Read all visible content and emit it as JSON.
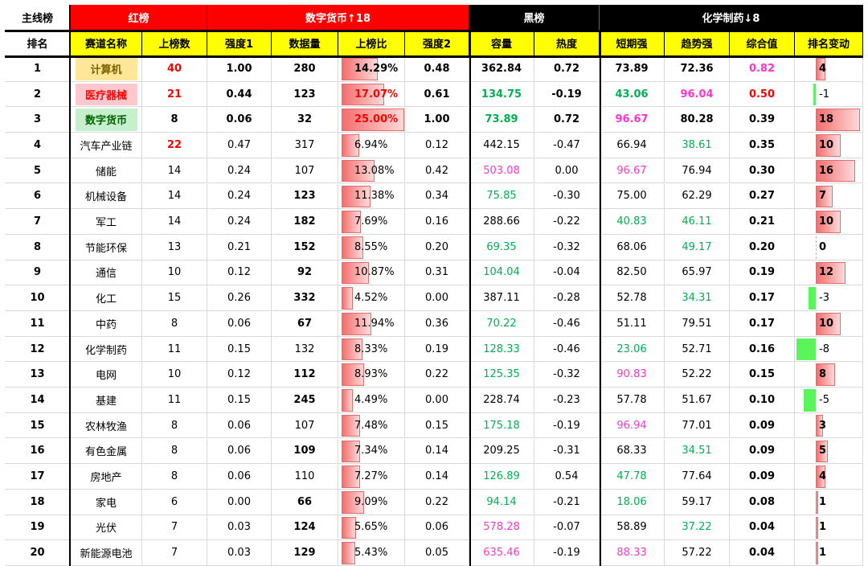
{
  "colors": {
    "red_bg": "#ff0000",
    "black_bg": "#000000",
    "yellow_bg": "#ffff00",
    "text_red": "#ff0000",
    "text_green": "#00b050",
    "text_magenta": "#ff33cc",
    "bar_red": "#f46e6e",
    "bar_green": "#5cf45c",
    "name_yellow": "#ffe699",
    "name_pink": "#ffc7ce",
    "name_green": "#c6efce"
  },
  "header": {
    "groups": [
      "主线榜",
      "红榜",
      "数字货币↑18",
      "黑榜",
      "化学制药↓8"
    ],
    "columns": [
      "排名",
      "赛道名称",
      "上榜数",
      "强度1",
      "数据量",
      "上榜比",
      "强度2",
      "容量",
      "热度",
      "短期强",
      "趋势强",
      "综合值",
      "排名变动"
    ]
  },
  "rows": [
    {
      "rank": "1",
      "name": "计算机",
      "name_bg": "yellow",
      "count": "40",
      "count_color": "red",
      "s1": "1.00",
      "s1_bold": true,
      "data": "280",
      "data_bold": true,
      "ratio": "14.29%",
      "ratio_val": 0.1429,
      "ratio_bold": true,
      "s2": "0.48",
      "s2_bold": true,
      "cap": "362.84",
      "cap_color": "black",
      "cap_bold": true,
      "heat": "0.72",
      "heat_bold": true,
      "short": "73.89",
      "short_color": "black",
      "short_bold": true,
      "trend": "72.36",
      "trend_color": "black",
      "trend_bold": true,
      "comp": "0.82",
      "comp_color": "magenta",
      "comp_bold": true,
      "change": "4",
      "change_val": 4,
      "change_bold": true
    },
    {
      "rank": "2",
      "name": "医疗器械",
      "name_bg": "pink",
      "count": "21",
      "count_color": "red",
      "s1": "0.44",
      "s1_bold": true,
      "data": "123",
      "data_bold": true,
      "ratio": "17.07%",
      "ratio_val": 0.1707,
      "ratio_bold": true,
      "ratio_color": "red",
      "s2": "0.61",
      "s2_bold": true,
      "cap": "134.75",
      "cap_color": "green",
      "cap_bold": true,
      "heat": "-0.19",
      "heat_bold": true,
      "short": "43.06",
      "short_color": "green",
      "short_bold": true,
      "trend": "96.04",
      "trend_color": "magenta",
      "trend_bold": true,
      "comp": "0.50",
      "comp_color": "red",
      "comp_bold": true,
      "change": "-1",
      "change_val": -1,
      "change_bold": false
    },
    {
      "rank": "3",
      "name": "数字货币",
      "name_bg": "green",
      "count": "8",
      "count_color": "black",
      "s1": "0.06",
      "s1_bold": true,
      "data": "32",
      "data_bold": true,
      "ratio": "25.00%",
      "ratio_val": 0.25,
      "ratio_bold": true,
      "ratio_color": "red",
      "s2": "1.00",
      "s2_bold": true,
      "cap": "73.89",
      "cap_color": "green",
      "cap_bold": true,
      "heat": "0.72",
      "heat_bold": true,
      "short": "96.67",
      "short_color": "magenta",
      "short_bold": true,
      "trend": "80.28",
      "trend_color": "black",
      "trend_bold": true,
      "comp": "0.39",
      "comp_color": "black",
      "comp_bold": true,
      "change": "18",
      "change_val": 18,
      "change_bold": true
    },
    {
      "rank": "4",
      "name": "汽车产业链",
      "name_bg": "",
      "count": "22",
      "count_color": "red",
      "s1": "0.47",
      "s1_bold": false,
      "data": "317",
      "data_bold": false,
      "ratio": "6.94%",
      "ratio_val": 0.0694,
      "ratio_bold": false,
      "s2": "0.12",
      "s2_bold": false,
      "cap": "442.15",
      "cap_color": "black",
      "cap_bold": false,
      "heat": "-0.47",
      "heat_bold": false,
      "short": "66.94",
      "short_color": "black",
      "short_bold": false,
      "trend": "38.61",
      "trend_color": "green",
      "trend_bold": false,
      "comp": "0.35",
      "comp_color": "black",
      "comp_bold": true,
      "change": "10",
      "change_val": 10,
      "change_bold": true
    },
    {
      "rank": "5",
      "name": "储能",
      "name_bg": "",
      "count": "14",
      "count_color": "black",
      "s1": "0.24",
      "s1_bold": false,
      "data": "107",
      "data_bold": false,
      "ratio": "13.08%",
      "ratio_val": 0.1308,
      "ratio_bold": false,
      "s2": "0.42",
      "s2_bold": false,
      "cap": "503.08",
      "cap_color": "magenta",
      "cap_bold": false,
      "heat": "0.00",
      "heat_bold": false,
      "short": "96.67",
      "short_color": "magenta",
      "short_bold": false,
      "trend": "76.94",
      "trend_color": "black",
      "trend_bold": false,
      "comp": "0.30",
      "comp_color": "black",
      "comp_bold": true,
      "change": "16",
      "change_val": 16,
      "change_bold": true
    },
    {
      "rank": "6",
      "name": "机械设备",
      "name_bg": "",
      "count": "14",
      "count_color": "black",
      "s1": "0.24",
      "s1_bold": false,
      "data": "123",
      "data_bold": true,
      "ratio": "11.38%",
      "ratio_val": 0.1138,
      "ratio_bold": false,
      "s2": "0.34",
      "s2_bold": false,
      "cap": "75.85",
      "cap_color": "green",
      "cap_bold": false,
      "heat": "-0.30",
      "heat_bold": false,
      "short": "75.00",
      "short_color": "black",
      "short_bold": false,
      "trend": "62.29",
      "trend_color": "black",
      "trend_bold": false,
      "comp": "0.27",
      "comp_color": "black",
      "comp_bold": true,
      "change": "7",
      "change_val": 7,
      "change_bold": true
    },
    {
      "rank": "7",
      "name": "军工",
      "name_bg": "",
      "count": "14",
      "count_color": "black",
      "s1": "0.24",
      "s1_bold": false,
      "data": "182",
      "data_bold": true,
      "ratio": "7.69%",
      "ratio_val": 0.0769,
      "ratio_bold": false,
      "s2": "0.16",
      "s2_bold": false,
      "cap": "288.66",
      "cap_color": "black",
      "cap_bold": false,
      "heat": "-0.22",
      "heat_bold": false,
      "short": "40.83",
      "short_color": "green",
      "short_bold": false,
      "trend": "46.11",
      "trend_color": "green",
      "trend_bold": false,
      "comp": "0.21",
      "comp_color": "black",
      "comp_bold": true,
      "change": "10",
      "change_val": 10,
      "change_bold": true
    },
    {
      "rank": "8",
      "name": "节能环保",
      "name_bg": "",
      "count": "13",
      "count_color": "black",
      "s1": "0.21",
      "s1_bold": false,
      "data": "152",
      "data_bold": true,
      "ratio": "8.55%",
      "ratio_val": 0.0855,
      "ratio_bold": false,
      "s2": "0.20",
      "s2_bold": false,
      "cap": "69.35",
      "cap_color": "green",
      "cap_bold": false,
      "heat": "-0.32",
      "heat_bold": false,
      "short": "68.06",
      "short_color": "black",
      "short_bold": false,
      "trend": "49.17",
      "trend_color": "green",
      "trend_bold": false,
      "comp": "0.20",
      "comp_color": "black",
      "comp_bold": true,
      "change": "0",
      "change_val": 0,
      "change_bold": true
    },
    {
      "rank": "9",
      "name": "通信",
      "name_bg": "",
      "count": "10",
      "count_color": "black",
      "s1": "0.12",
      "s1_bold": false,
      "data": "92",
      "data_bold": true,
      "ratio": "10.87%",
      "ratio_val": 0.1087,
      "ratio_bold": false,
      "s2": "0.31",
      "s2_bold": false,
      "cap": "104.04",
      "cap_color": "green",
      "cap_bold": false,
      "heat": "-0.04",
      "heat_bold": false,
      "short": "82.50",
      "short_color": "black",
      "short_bold": false,
      "trend": "65.97",
      "trend_color": "black",
      "trend_bold": false,
      "comp": "0.19",
      "comp_color": "black",
      "comp_bold": true,
      "change": "12",
      "change_val": 12,
      "change_bold": true
    },
    {
      "rank": "10",
      "name": "化工",
      "name_bg": "",
      "count": "15",
      "count_color": "black",
      "s1": "0.26",
      "s1_bold": false,
      "data": "332",
      "data_bold": true,
      "ratio": "4.52%",
      "ratio_val": 0.0452,
      "ratio_bold": false,
      "s2": "0.00",
      "s2_bold": false,
      "cap": "387.11",
      "cap_color": "black",
      "cap_bold": false,
      "heat": "-0.28",
      "heat_bold": false,
      "short": "52.78",
      "short_color": "black",
      "short_bold": false,
      "trend": "34.31",
      "trend_color": "green",
      "trend_bold": false,
      "comp": "0.17",
      "comp_color": "black",
      "comp_bold": true,
      "change": "-3",
      "change_val": -3,
      "change_bold": false
    },
    {
      "rank": "11",
      "name": "中药",
      "name_bg": "",
      "count": "8",
      "count_color": "black",
      "s1": "0.06",
      "s1_bold": false,
      "data": "67",
      "data_bold": true,
      "ratio": "11.94%",
      "ratio_val": 0.1194,
      "ratio_bold": false,
      "s2": "0.36",
      "s2_bold": false,
      "cap": "70.22",
      "cap_color": "green",
      "cap_bold": false,
      "heat": "-0.46",
      "heat_bold": false,
      "short": "51.11",
      "short_color": "black",
      "short_bold": false,
      "trend": "79.51",
      "trend_color": "black",
      "trend_bold": false,
      "comp": "0.17",
      "comp_color": "black",
      "comp_bold": true,
      "change": "10",
      "change_val": 10,
      "change_bold": true
    },
    {
      "rank": "12",
      "name": "化学制药",
      "name_bg": "",
      "count": "11",
      "count_color": "black",
      "s1": "0.15",
      "s1_bold": false,
      "data": "132",
      "data_bold": false,
      "ratio": "8.33%",
      "ratio_val": 0.0833,
      "ratio_bold": false,
      "s2": "0.19",
      "s2_bold": false,
      "cap": "128.33",
      "cap_color": "green",
      "cap_bold": false,
      "heat": "-0.46",
      "heat_bold": false,
      "short": "23.06",
      "short_color": "green",
      "short_bold": false,
      "trend": "52.71",
      "trend_color": "black",
      "trend_bold": false,
      "comp": "0.16",
      "comp_color": "black",
      "comp_bold": true,
      "change": "-8",
      "change_val": -8,
      "change_bold": false
    },
    {
      "rank": "13",
      "name": "电网",
      "name_bg": "",
      "count": "10",
      "count_color": "black",
      "s1": "0.12",
      "s1_bold": false,
      "data": "112",
      "data_bold": true,
      "ratio": "8.93%",
      "ratio_val": 0.0893,
      "ratio_bold": false,
      "s2": "0.22",
      "s2_bold": false,
      "cap": "125.35",
      "cap_color": "green",
      "cap_bold": false,
      "heat": "-0.32",
      "heat_bold": false,
      "short": "90.83",
      "short_color": "magenta",
      "short_bold": false,
      "trend": "52.22",
      "trend_color": "black",
      "trend_bold": false,
      "comp": "0.15",
      "comp_color": "black",
      "comp_bold": true,
      "change": "8",
      "change_val": 8,
      "change_bold": true
    },
    {
      "rank": "14",
      "name": "基建",
      "name_bg": "",
      "count": "11",
      "count_color": "black",
      "s1": "0.15",
      "s1_bold": false,
      "data": "245",
      "data_bold": true,
      "ratio": "4.49%",
      "ratio_val": 0.0449,
      "ratio_bold": false,
      "s2": "0.00",
      "s2_bold": false,
      "cap": "228.74",
      "cap_color": "black",
      "cap_bold": false,
      "heat": "-0.23",
      "heat_bold": false,
      "short": "57.78",
      "short_color": "black",
      "short_bold": false,
      "trend": "51.67",
      "trend_color": "black",
      "trend_bold": false,
      "comp": "0.10",
      "comp_color": "black",
      "comp_bold": true,
      "change": "-5",
      "change_val": -5,
      "change_bold": false
    },
    {
      "rank": "15",
      "name": "农林牧渔",
      "name_bg": "",
      "count": "8",
      "count_color": "black",
      "s1": "0.06",
      "s1_bold": false,
      "data": "107",
      "data_bold": false,
      "ratio": "7.48%",
      "ratio_val": 0.0748,
      "ratio_bold": false,
      "s2": "0.15",
      "s2_bold": false,
      "cap": "175.18",
      "cap_color": "green",
      "cap_bold": false,
      "heat": "-0.19",
      "heat_bold": false,
      "short": "96.94",
      "short_color": "magenta",
      "short_bold": false,
      "trend": "77.01",
      "trend_color": "black",
      "trend_bold": false,
      "comp": "0.09",
      "comp_color": "black",
      "comp_bold": true,
      "change": "3",
      "change_val": 3,
      "change_bold": true
    },
    {
      "rank": "16",
      "name": "有色金属",
      "name_bg": "",
      "count": "8",
      "count_color": "black",
      "s1": "0.06",
      "s1_bold": false,
      "data": "109",
      "data_bold": true,
      "ratio": "7.34%",
      "ratio_val": 0.0734,
      "ratio_bold": false,
      "s2": "0.14",
      "s2_bold": false,
      "cap": "209.25",
      "cap_color": "black",
      "cap_bold": false,
      "heat": "-0.31",
      "heat_bold": false,
      "short": "68.33",
      "short_color": "black",
      "short_bold": false,
      "trend": "34.51",
      "trend_color": "green",
      "trend_bold": false,
      "comp": "0.09",
      "comp_color": "black",
      "comp_bold": true,
      "change": "5",
      "change_val": 5,
      "change_bold": true
    },
    {
      "rank": "17",
      "name": "房地产",
      "name_bg": "",
      "count": "8",
      "count_color": "black",
      "s1": "0.06",
      "s1_bold": false,
      "data": "110",
      "data_bold": false,
      "ratio": "7.27%",
      "ratio_val": 0.0727,
      "ratio_bold": false,
      "s2": "0.14",
      "s2_bold": false,
      "cap": "126.89",
      "cap_color": "green",
      "cap_bold": false,
      "heat": "0.54",
      "heat_bold": false,
      "short": "47.78",
      "short_color": "green",
      "short_bold": false,
      "trend": "77.64",
      "trend_color": "black",
      "trend_bold": false,
      "comp": "0.09",
      "comp_color": "black",
      "comp_bold": true,
      "change": "4",
      "change_val": 4,
      "change_bold": true
    },
    {
      "rank": "18",
      "name": "家电",
      "name_bg": "",
      "count": "6",
      "count_color": "black",
      "s1": "0.00",
      "s1_bold": false,
      "data": "66",
      "data_bold": true,
      "ratio": "9.09%",
      "ratio_val": 0.0909,
      "ratio_bold": false,
      "s2": "0.22",
      "s2_bold": false,
      "cap": "94.14",
      "cap_color": "green",
      "cap_bold": false,
      "heat": "-0.21",
      "heat_bold": false,
      "short": "18.06",
      "short_color": "green",
      "short_bold": false,
      "trend": "59.17",
      "trend_color": "black",
      "trend_bold": false,
      "comp": "0.08",
      "comp_color": "black",
      "comp_bold": true,
      "change": "1",
      "change_val": 1,
      "change_bold": true
    },
    {
      "rank": "19",
      "name": "光伏",
      "name_bg": "",
      "count": "7",
      "count_color": "black",
      "s1": "0.03",
      "s1_bold": false,
      "data": "124",
      "data_bold": true,
      "ratio": "5.65%",
      "ratio_val": 0.0565,
      "ratio_bold": false,
      "s2": "0.06",
      "s2_bold": false,
      "cap": "578.28",
      "cap_color": "magenta",
      "cap_bold": false,
      "heat": "-0.07",
      "heat_bold": false,
      "short": "58.89",
      "short_color": "black",
      "short_bold": false,
      "trend": "37.22",
      "trend_color": "green",
      "trend_bold": false,
      "comp": "0.04",
      "comp_color": "black",
      "comp_bold": true,
      "change": "1",
      "change_val": 1,
      "change_bold": true
    },
    {
      "rank": "20",
      "name": "新能源电池",
      "name_bg": "",
      "count": "7",
      "count_color": "black",
      "s1": "0.03",
      "s1_bold": false,
      "data": "129",
      "data_bold": true,
      "ratio": "5.43%",
      "ratio_val": 0.0543,
      "ratio_bold": false,
      "s2": "0.05",
      "s2_bold": false,
      "cap": "635.46",
      "cap_color": "magenta",
      "cap_bold": false,
      "heat": "-0.19",
      "heat_bold": false,
      "short": "88.33",
      "short_color": "magenta",
      "short_bold": false,
      "trend": "57.22",
      "trend_color": "black",
      "trend_bold": false,
      "comp": "0.04",
      "comp_color": "black",
      "comp_bold": true,
      "change": "1",
      "change_val": 1,
      "change_bold": true
    }
  ]
}
